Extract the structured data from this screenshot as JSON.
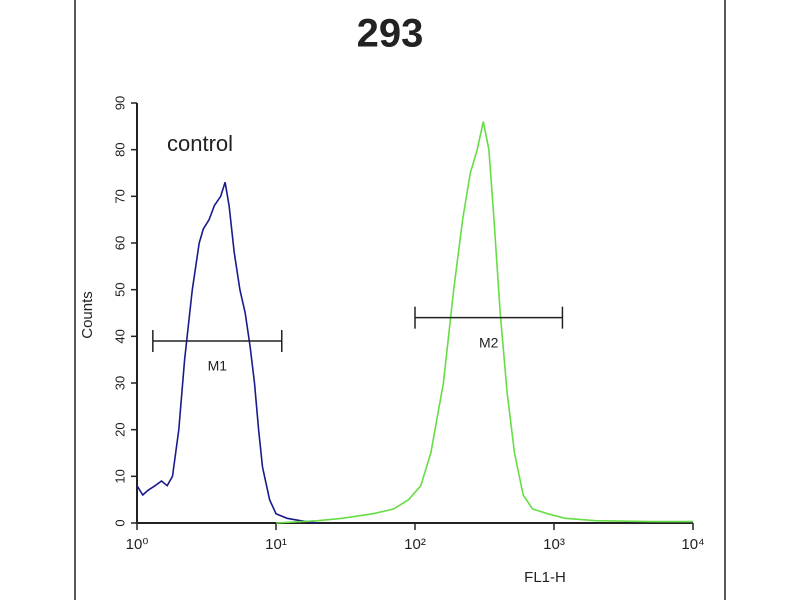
{
  "chart_data": {
    "type": "histogram-line",
    "title": "293",
    "x_label": "FL1-H",
    "y_label": "Counts",
    "annotation": "control",
    "log_x": true,
    "xlim": [
      1,
      10000
    ],
    "xticks": [
      {
        "value": 1,
        "label": "10⁰"
      },
      {
        "value": 10,
        "label": "10¹"
      },
      {
        "value": 100,
        "label": "10²"
      },
      {
        "value": 1000,
        "label": "10³"
      },
      {
        "value": 10000,
        "label": "10⁴"
      }
    ],
    "ylim": [
      0,
      90
    ],
    "yticks": [
      0,
      10,
      20,
      30,
      40,
      50,
      60,
      70,
      80,
      90
    ],
    "series": [
      {
        "color": "#1a1a8c",
        "x": [
          1.0,
          1.1,
          1.2,
          1.35,
          1.5,
          1.65,
          1.8,
          2.0,
          2.2,
          2.5,
          2.8,
          3.0,
          3.3,
          3.6,
          4.0,
          4.3,
          4.6,
          5.0,
          5.5,
          6.0,
          6.5,
          7.0,
          7.5,
          8.0,
          9.0,
          10,
          12,
          15,
          20
        ],
        "values": [
          8,
          6,
          7,
          8,
          9,
          8,
          10,
          20,
          35,
          50,
          60,
          63,
          65,
          68,
          70,
          73,
          68,
          58,
          50,
          45,
          38,
          30,
          20,
          12,
          5,
          2,
          1,
          0.5,
          0
        ]
      },
      {
        "color": "#66dd44",
        "x": [
          10,
          20,
          30,
          50,
          70,
          90,
          110,
          130,
          160,
          190,
          220,
          250,
          280,
          310,
          340,
          370,
          410,
          460,
          520,
          600,
          700,
          900,
          1200,
          2000,
          5000,
          10000
        ],
        "values": [
          0,
          0.5,
          1,
          2,
          3,
          5,
          8,
          15,
          30,
          50,
          65,
          75,
          80,
          86,
          80,
          65,
          45,
          28,
          15,
          6,
          3,
          2,
          1,
          0.5,
          0.3,
          0.3
        ]
      }
    ],
    "markers": [
      {
        "label": "M1",
        "x": [
          1.3,
          11
        ],
        "y": 39
      },
      {
        "label": "M2",
        "x": [
          100,
          1150
        ],
        "y": 44
      }
    ]
  }
}
